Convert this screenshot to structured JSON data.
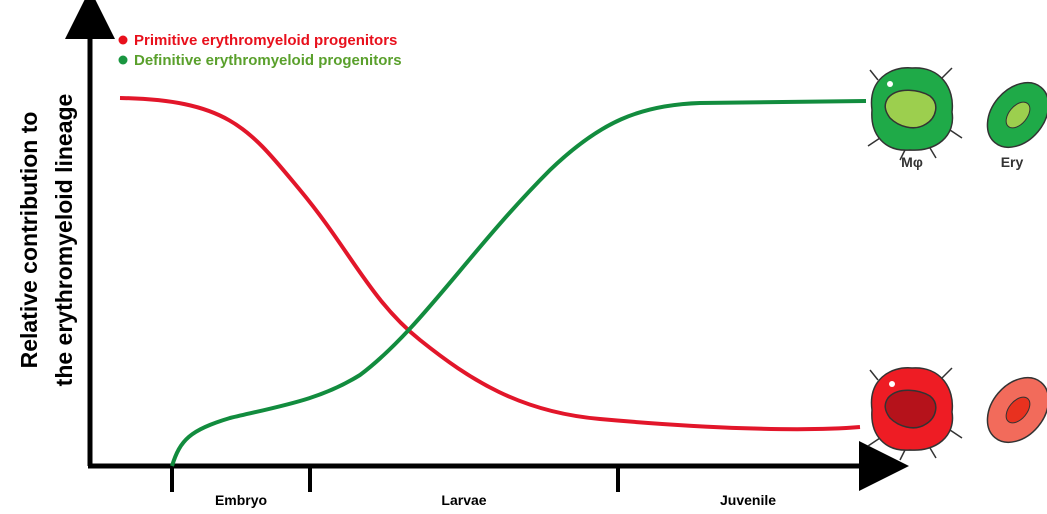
{
  "legend": [
    "Primitive erythromyeloid progenitors",
    "Definitive erythromyeloid progenitors"
  ],
  "y_axis_label": [
    "Relative contribution to",
    "the erythromyeloid lineage"
  ],
  "stages": [
    "Embryo",
    "Larvae",
    "Juvenile"
  ],
  "cell_labels": [
    "Mφ",
    "Ery"
  ]
}
